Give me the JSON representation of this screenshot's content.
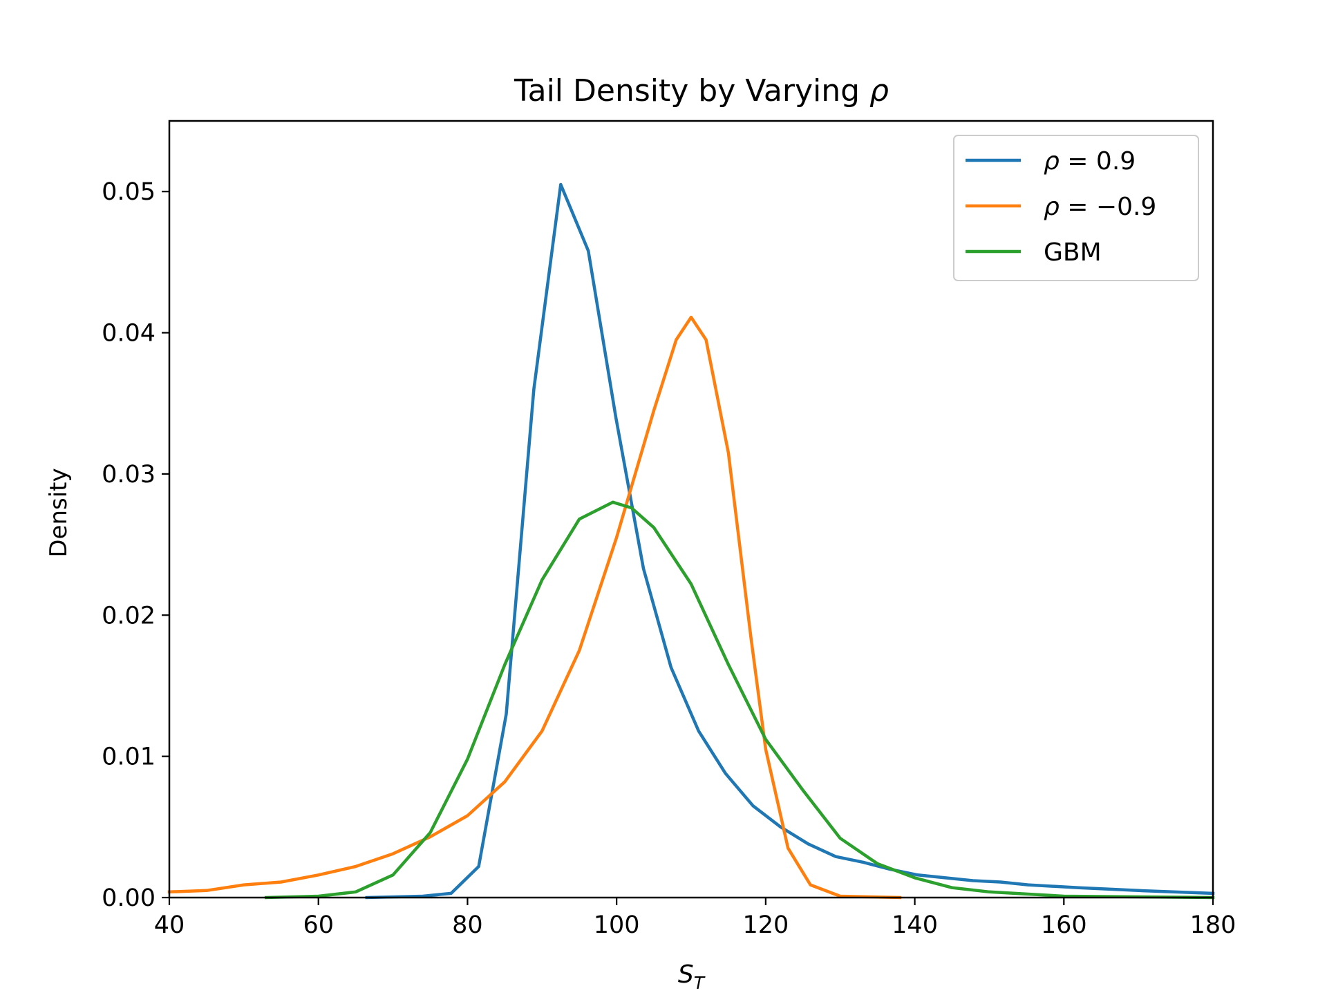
{
  "chart_data": {
    "type": "line",
    "title_prefix": "Tail Density by Varying ",
    "title_symbol": "ρ",
    "xlabel_main": "S",
    "xlabel_sub": "T",
    "ylabel": "Density",
    "xlim": [
      40,
      180
    ],
    "ylim": [
      0,
      0.055
    ],
    "x_ticks": [
      40,
      60,
      80,
      100,
      120,
      140,
      160,
      180
    ],
    "x_tick_labels": [
      "40",
      "60",
      "80",
      "100",
      "120",
      "140",
      "160",
      "180"
    ],
    "y_ticks": [
      0,
      0.01,
      0.02,
      0.03,
      0.04,
      0.05
    ],
    "y_tick_labels": [
      "0.00",
      "0.01",
      "0.02",
      "0.03",
      "0.04",
      "0.05"
    ],
    "grid": false,
    "legend_position": "top-right",
    "series": [
      {
        "name": "ρ = 0.9",
        "legend_symbol": "ρ",
        "legend_rest": " = 0.9",
        "color": "#1f77b4",
        "points": [
          [
            66.5,
            0
          ],
          [
            74,
            0.0001
          ],
          [
            77.8,
            0.0003
          ],
          [
            81.5,
            0.0022
          ],
          [
            85.2,
            0.013
          ],
          [
            88.9,
            0.036
          ],
          [
            92.5,
            0.0505
          ],
          [
            96.2,
            0.0458
          ],
          [
            99.9,
            0.034
          ],
          [
            103.6,
            0.0233
          ],
          [
            107.3,
            0.0163
          ],
          [
            111,
            0.0118
          ],
          [
            114.6,
            0.0088
          ],
          [
            118.3,
            0.0065
          ],
          [
            122,
            0.005
          ],
          [
            125.7,
            0.0038
          ],
          [
            129.4,
            0.0029
          ],
          [
            133.1,
            0.0025
          ],
          [
            136.7,
            0.002
          ],
          [
            140.4,
            0.0016
          ],
          [
            144.1,
            0.0014
          ],
          [
            147.8,
            0.0012
          ],
          [
            151.5,
            0.0011
          ],
          [
            155.2,
            0.0009
          ],
          [
            162,
            0.0007
          ],
          [
            170,
            0.0005
          ],
          [
            180,
            0.0003
          ]
        ]
      },
      {
        "name": "ρ = −0.9",
        "legend_symbol": "ρ",
        "legend_rest": " = −0.9",
        "color": "#ff7f0e",
        "points": [
          [
            40,
            0.0004
          ],
          [
            45,
            0.0005
          ],
          [
            50,
            0.0009
          ],
          [
            55,
            0.0011
          ],
          [
            60,
            0.0016
          ],
          [
            65,
            0.0022
          ],
          [
            70,
            0.0031
          ],
          [
            75,
            0.0043
          ],
          [
            80,
            0.0058
          ],
          [
            85,
            0.0082
          ],
          [
            90,
            0.0118
          ],
          [
            95,
            0.0175
          ],
          [
            100,
            0.0255
          ],
          [
            105,
            0.0345
          ],
          [
            108,
            0.0395
          ],
          [
            110,
            0.0411
          ],
          [
            112,
            0.0395
          ],
          [
            115,
            0.0315
          ],
          [
            118,
            0.0185
          ],
          [
            120,
            0.0105
          ],
          [
            123,
            0.0035
          ],
          [
            126,
            0.0009
          ],
          [
            130,
            0.0001
          ],
          [
            138,
            0
          ]
        ]
      },
      {
        "name": "GBM",
        "legend_symbol": "",
        "legend_rest": "GBM",
        "color": "#2ca02c",
        "points": [
          [
            53,
            0
          ],
          [
            60,
            0.0001
          ],
          [
            65,
            0.0004
          ],
          [
            70,
            0.0016
          ],
          [
            75,
            0.0046
          ],
          [
            80,
            0.0098
          ],
          [
            85,
            0.0165
          ],
          [
            90,
            0.0225
          ],
          [
            95,
            0.0268
          ],
          [
            99.5,
            0.028
          ],
          [
            102,
            0.0276
          ],
          [
            105,
            0.0262
          ],
          [
            110,
            0.0222
          ],
          [
            115,
            0.0165
          ],
          [
            120,
            0.0112
          ],
          [
            125,
            0.0076
          ],
          [
            130,
            0.0042
          ],
          [
            135,
            0.0024
          ],
          [
            140,
            0.0014
          ],
          [
            145,
            0.0007
          ],
          [
            150,
            0.0004
          ],
          [
            160,
            0.0001
          ],
          [
            180,
            0
          ]
        ]
      }
    ]
  }
}
